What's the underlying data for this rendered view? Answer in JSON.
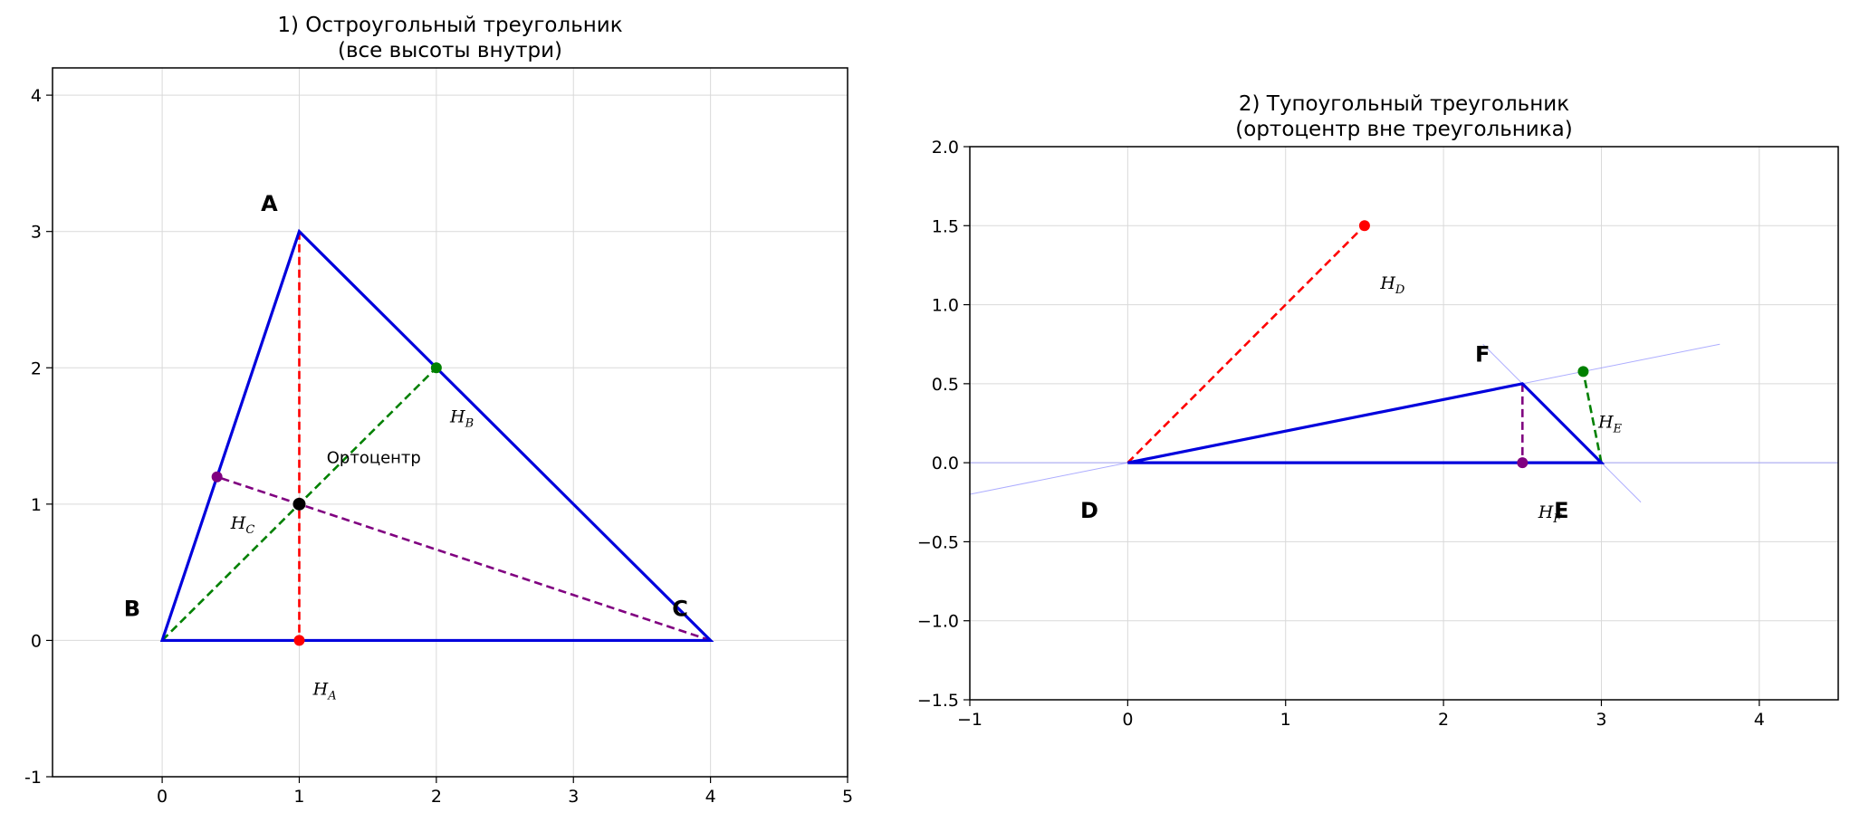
{
  "chart_data": [
    {
      "type": "line",
      "title": "1) Остроугольный треугольник\n(все высоты внутри)",
      "xlim": [
        -0.8,
        5
      ],
      "ylim": [
        -1,
        4.2
      ],
      "xticks": [
        0,
        1,
        2,
        3,
        4,
        5
      ],
      "yticks": [
        -1,
        0,
        1,
        2,
        3,
        4
      ],
      "grid": true,
      "triangle": {
        "points": [
          [
            1,
            3
          ],
          [
            0,
            0
          ],
          [
            4,
            0
          ]
        ],
        "color": "#0000dd"
      },
      "vertex_labels": [
        {
          "text": "A",
          "x": 0.72,
          "y": 3.15
        },
        {
          "text": "B",
          "x": -0.28,
          "y": 0.18
        },
        {
          "text": "C",
          "x": 3.72,
          "y": 0.18
        }
      ],
      "altitudes": [
        {
          "from": [
            1,
            3
          ],
          "to": [
            1,
            0
          ],
          "foot": [
            1,
            0
          ],
          "color": "#ff0000",
          "label": "H",
          "sub": "A",
          "label_at": [
            1.1,
            -0.4
          ]
        },
        {
          "from": [
            0,
            0
          ],
          "to": [
            2,
            2
          ],
          "foot": [
            2,
            2
          ],
          "color": "#008000",
          "label": "H",
          "sub": "B",
          "label_at": [
            2.1,
            1.6
          ]
        },
        {
          "from": [
            4,
            0
          ],
          "to": [
            0.4,
            1.2
          ],
          "foot": [
            0.4,
            1.2
          ],
          "color": "#800080",
          "label": "H",
          "sub": "C",
          "label_at": [
            0.5,
            0.82
          ]
        }
      ],
      "orthocenter": {
        "x": 1,
        "y": 1,
        "label": "Ортоцентр",
        "label_at": [
          1.2,
          1.3
        ],
        "color": "#000000"
      }
    },
    {
      "type": "line",
      "title": "2) Тупоугольный треугольник\n(ортоцентр вне треугольника)",
      "xlim": [
        -1,
        4.5
      ],
      "ylim": [
        -1.5,
        2
      ],
      "xticks": [
        -1,
        0,
        1,
        2,
        3,
        4
      ],
      "yticks": [
        -1.5,
        -1.0,
        -0.5,
        0.0,
        0.5,
        1.0,
        1.5,
        2.0
      ],
      "xtick_labels": [
        "−1",
        "0",
        "1",
        "2",
        "3",
        "4"
      ],
      "ytick_labels": [
        "−1.5",
        "−1.0",
        "−0.5",
        "0.0",
        "0.5",
        "1.0",
        "1.5",
        "2.0"
      ],
      "grid": true,
      "triangle": {
        "points": [
          [
            0,
            0
          ],
          [
            3,
            0
          ],
          [
            2.5,
            0.5
          ]
        ],
        "color": "#0000dd"
      },
      "extension_lines": [
        {
          "from": [
            -1,
            0
          ],
          "to": [
            4.5,
            0
          ]
        },
        {
          "from": [
            -1,
            -0.2
          ],
          "to": [
            3.75,
            0.75
          ]
        },
        {
          "from": [
            2.25,
            0.75
          ],
          "to": [
            3.25,
            -0.25
          ]
        }
      ],
      "vertex_labels": [
        {
          "text": "D",
          "x": -0.3,
          "y": -0.35
        },
        {
          "text": "E",
          "x": 2.7,
          "y": -0.35
        },
        {
          "text": "F",
          "x": 2.2,
          "y": 0.64
        }
      ],
      "altitudes": [
        {
          "from": [
            0,
            0
          ],
          "to": [
            1.5,
            1.5
          ],
          "foot": [
            1.5,
            1.5
          ],
          "color": "#ff0000",
          "label": "H",
          "sub": "D",
          "label_at": [
            1.6,
            1.1
          ]
        },
        {
          "from": [
            3,
            0
          ],
          "to": [
            2.885,
            0.577
          ],
          "foot": [
            2.885,
            0.577
          ],
          "color": "#008000",
          "label": "H",
          "sub": "E",
          "label_at": [
            2.98,
            0.22
          ]
        },
        {
          "from": [
            2.5,
            0.5
          ],
          "to": [
            2.5,
            0
          ],
          "foot": [
            2.5,
            0
          ],
          "color": "#800080",
          "label": "H",
          "sub": "F",
          "label_at": [
            2.6,
            -0.35
          ]
        }
      ]
    }
  ]
}
